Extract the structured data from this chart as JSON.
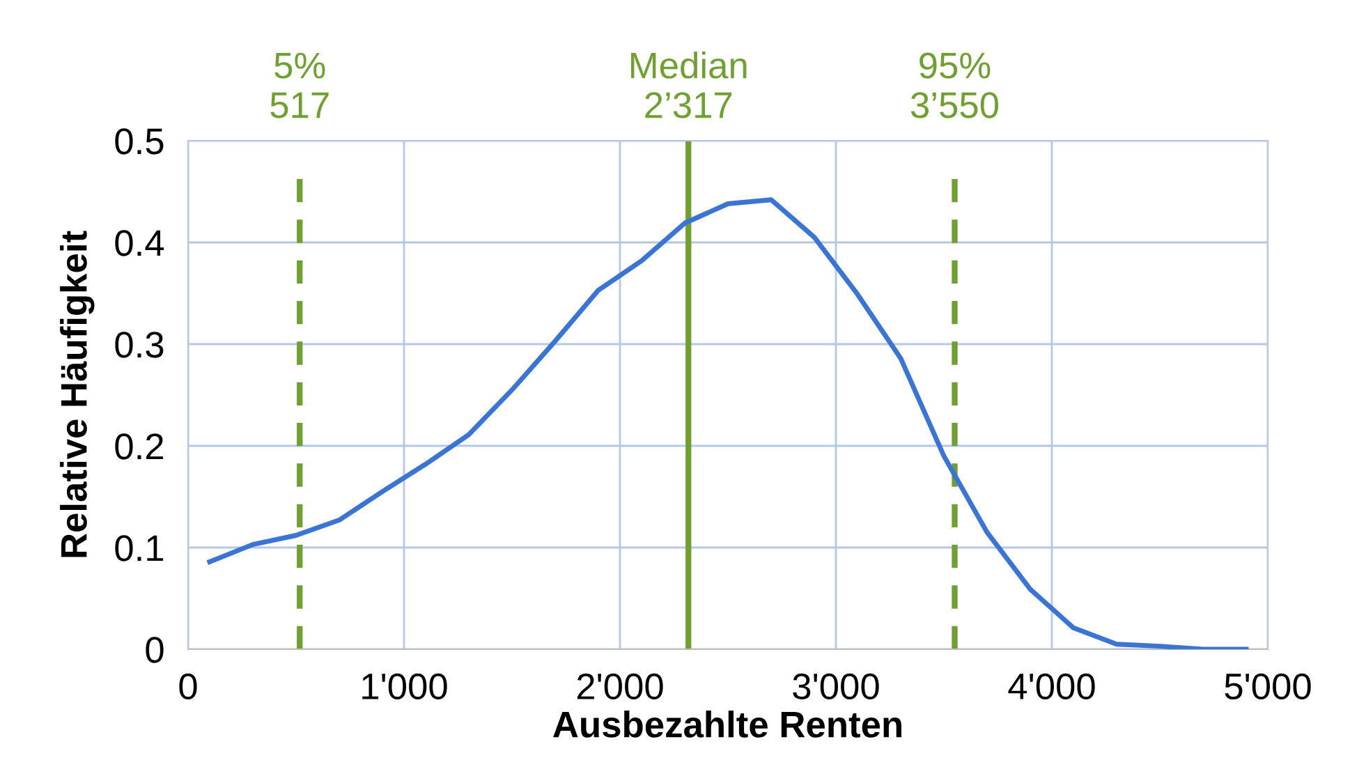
{
  "chart_data": {
    "type": "line",
    "xlabel": "Ausbezahlte Renten",
    "ylabel": "Relative Häufigkeit",
    "x": [
      100,
      300,
      500,
      700,
      900,
      1100,
      1300,
      1500,
      1700,
      1900,
      2100,
      2300,
      2500,
      2700,
      2900,
      3100,
      3300,
      3500,
      3700,
      3900,
      4100,
      4300,
      4500,
      4700,
      4900
    ],
    "series": [
      {
        "color": "#3a75d4",
        "values": [
          0.086,
          0.103,
          0.112,
          0.127,
          0.155,
          0.182,
          0.211,
          0.255,
          0.303,
          0.353,
          0.382,
          0.419,
          0.438,
          0.442,
          0.405,
          0.349,
          0.286,
          0.19,
          0.115,
          0.059,
          0.021,
          0.005,
          0.003,
          0,
          0
        ]
      }
    ],
    "xlim": [
      0,
      5000
    ],
    "xticks": [
      0,
      {
        "value": 1000,
        "label": "1'000"
      },
      {
        "value": 2000,
        "label": "2'000"
      },
      {
        "value": 3000,
        "label": "3'000"
      },
      {
        "value": 4000,
        "label": "4'000"
      },
      {
        "value": 5000,
        "label": "5'000"
      }
    ],
    "ylim": [
      0,
      0.5
    ],
    "yticks": [
      0,
      0.1,
      0.2,
      0.3,
      0.4,
      0.5
    ],
    "grid": true,
    "marker": "none",
    "line_style": "solid",
    "ref_lines": [
      {
        "axis": "x",
        "value": 517,
        "label": "5%\n517",
        "color": "#70a032",
        "line_style": "dashed"
      },
      {
        "axis": "x",
        "value": 2317,
        "label": "Median\n2’317",
        "color": "#70a032",
        "line_style": "solid"
      },
      {
        "axis": "x",
        "value": 3550,
        "label": "95%\n3’550",
        "color": "#70a032",
        "line_style": "dashed"
      }
    ]
  }
}
